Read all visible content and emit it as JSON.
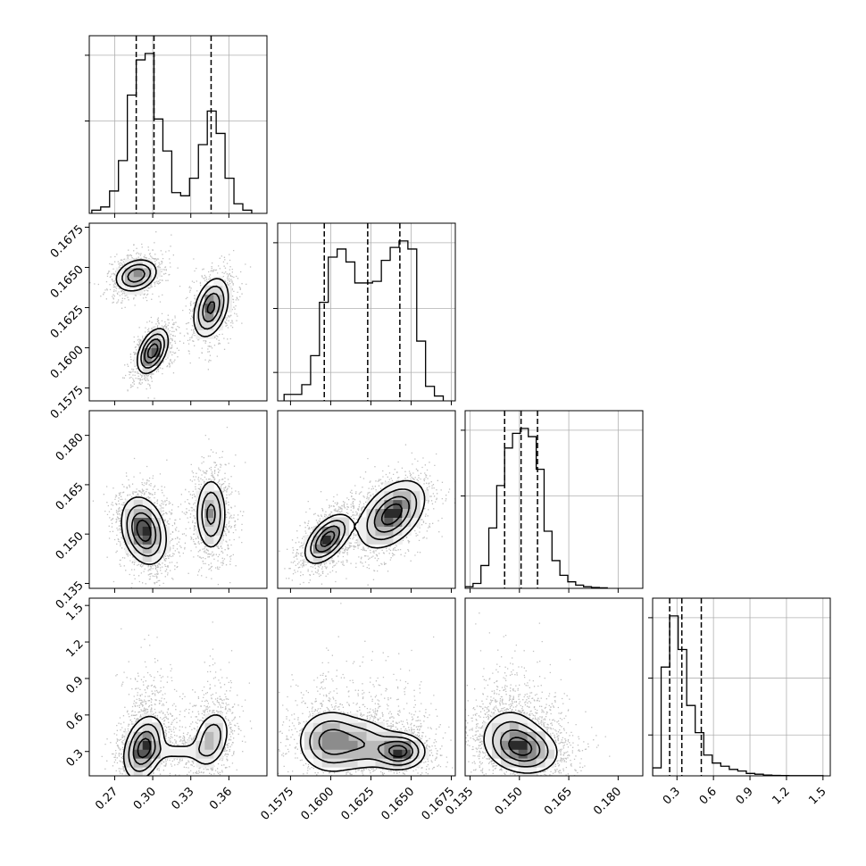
{
  "chart_data": {
    "type": "corner",
    "parameters": [
      {
        "xlim": [
          0.25,
          0.39
        ],
        "ylim": [
          0.1335,
          0.1875
        ],
        "ticks": [
          0.27,
          0.3,
          0.33,
          0.36
        ],
        "tick_labels": [
          "0.27",
          "0.30",
          "0.33",
          "0.36"
        ],
        "quantiles": [
          0.287,
          0.301,
          0.346
        ],
        "hist_bins": [
          0.252,
          0.259,
          0.266,
          0.273,
          0.28,
          0.287,
          0.294,
          0.301,
          0.308,
          0.315,
          0.322,
          0.329,
          0.336,
          0.343,
          0.35,
          0.357,
          0.364,
          0.371,
          0.378
        ],
        "hist_counts": [
          0.02,
          0.04,
          0.14,
          0.33,
          0.74,
          0.96,
          1.0,
          0.59,
          0.39,
          0.13,
          0.11,
          0.22,
          0.43,
          0.64,
          0.5,
          0.22,
          0.06,
          0.02
        ],
        "hist_yticks": [
          0.52,
          0.89
        ]
      },
      {
        "xlim": [
          0.1567,
          0.16775
        ],
        "ylim": [
          0.1567,
          0.16775
        ],
        "ticks": [
          0.1575,
          0.16,
          0.1625,
          0.165,
          0.1675
        ],
        "tick_labels": [
          "0.1575",
          "0.1600",
          "0.1625",
          "0.1650",
          "0.1675"
        ],
        "quantiles": [
          0.1596,
          0.1623,
          0.1643
        ],
        "hist_bins": [
          0.1571,
          0.15765,
          0.1582,
          0.15875,
          0.1593,
          0.15985,
          0.1604,
          0.16095,
          0.1615,
          0.16205,
          0.1626,
          0.16315,
          0.1637,
          0.16425,
          0.1648,
          0.16535,
          0.1659,
          0.16645,
          0.167
        ],
        "hist_counts": [
          0.04,
          0.04,
          0.1,
          0.28,
          0.61,
          0.89,
          0.94,
          0.86,
          0.73,
          0.73,
          0.74,
          0.87,
          0.95,
          0.99,
          0.94,
          0.37,
          0.09,
          0.03
        ],
        "hist_yticks": [
          0.16,
          0.52,
          0.89
        ]
      },
      {
        "xlim": [
          0.1335,
          0.1875
        ],
        "ylim": [
          0.1335,
          0.1875
        ],
        "ticks": [
          0.135,
          0.15,
          0.165,
          0.18
        ],
        "tick_labels": [
          "0.135",
          "0.150",
          "0.165",
          "0.180"
        ],
        "quantiles": [
          0.1455,
          0.1505,
          0.1555
        ],
        "hist_bins": [
          0.1335,
          0.1359,
          0.1383,
          0.1407,
          0.1431,
          0.1455,
          0.1479,
          0.1503,
          0.1527,
          0.1551,
          0.1575,
          0.1599,
          0.1623,
          0.1647,
          0.1671,
          0.1695,
          0.1719,
          0.1743,
          0.1767
        ],
        "hist_counts": [
          0.01,
          0.03,
          0.14,
          0.37,
          0.63,
          0.86,
          0.95,
          0.98,
          0.93,
          0.73,
          0.35,
          0.17,
          0.08,
          0.04,
          0.02,
          0.01,
          0.005,
          0.003
        ],
        "hist_yticks": [
          0.52,
          0.89
        ]
      },
      {
        "xlim": [
          0.1,
          1.56
        ],
        "ylim": [
          0.1,
          1.56
        ],
        "ticks": [
          0.3,
          0.6,
          0.9,
          1.2,
          1.5
        ],
        "tick_labels": [
          "0.3",
          "0.6",
          "0.9",
          "1.2",
          "1.5"
        ],
        "quantiles": [
          0.24,
          0.34,
          0.5
        ],
        "hist_bins": [
          0.1,
          0.17,
          0.24,
          0.31,
          0.38,
          0.45,
          0.52,
          0.59,
          0.66,
          0.73,
          0.8,
          0.87,
          0.94,
          1.01,
          1.08,
          1.15,
          1.22,
          1.29,
          1.36,
          1.43,
          1.5
        ],
        "hist_counts": [
          0.05,
          0.68,
          1.0,
          0.79,
          0.44,
          0.27,
          0.13,
          0.08,
          0.06,
          0.04,
          0.03,
          0.015,
          0.01,
          0.005,
          0.003,
          0.002,
          0.001,
          0.001,
          0.001,
          0.001
        ],
        "hist_yticks": [
          0.23,
          0.55,
          0.89
        ]
      }
    ],
    "contour_panels": [
      {
        "x_param": 0,
        "y_param": 1,
        "clusters": [
          {
            "cx": 0.287,
            "cy": 0.1645,
            "sx": 0.009,
            "sy": 0.00055,
            "rho": 0.25,
            "w": 0.8
          },
          {
            "cx": 0.3,
            "cy": 0.1598,
            "sx": 0.0065,
            "sy": 0.00075,
            "rho": 0.45,
            "w": 1.0
          },
          {
            "cx": 0.346,
            "cy": 0.1625,
            "sx": 0.0075,
            "sy": 0.001,
            "rho": 0.35,
            "w": 0.9
          }
        ]
      },
      {
        "x_param": 0,
        "y_param": 2,
        "clusters": [
          {
            "cx": 0.293,
            "cy": 0.151,
            "sx": 0.0095,
            "sy": 0.0055,
            "rho": -0.25,
            "w": 1.0
          },
          {
            "cx": 0.346,
            "cy": 0.156,
            "sx": 0.0065,
            "sy": 0.006,
            "rho": 0.0,
            "w": 0.7
          }
        ]
      },
      {
        "x_param": 1,
        "y_param": 2,
        "clusters": [
          {
            "cx": 0.1598,
            "cy": 0.1485,
            "sx": 0.00075,
            "sy": 0.004,
            "rho": 0.55,
            "w": 1.0
          },
          {
            "cx": 0.1638,
            "cy": 0.156,
            "sx": 0.0011,
            "sy": 0.0055,
            "rho": 0.45,
            "w": 1.0
          }
        ]
      },
      {
        "x_param": 0,
        "y_param": 3,
        "clusters": [
          {
            "cx": 0.293,
            "cy": 0.33,
            "sx": 0.0085,
            "sy": 0.14,
            "rho": 0.3,
            "w": 1.0
          },
          {
            "cx": 0.346,
            "cy": 0.4,
            "sx": 0.008,
            "sy": 0.13,
            "rho": 0.3,
            "w": 0.6
          },
          {
            "cx": 0.32,
            "cy": 0.3,
            "sx": 0.013,
            "sy": 0.05,
            "rho": 0.0,
            "w": 0.25
          }
        ]
      },
      {
        "x_param": 1,
        "y_param": 3,
        "clusters": [
          {
            "cx": 0.16,
            "cy": 0.38,
            "sx": 0.0011,
            "sy": 0.14,
            "rho": 0.0,
            "w": 0.8
          },
          {
            "cx": 0.1643,
            "cy": 0.3,
            "sx": 0.00085,
            "sy": 0.08,
            "rho": 0.0,
            "w": 1.0
          },
          {
            "cx": 0.1622,
            "cy": 0.36,
            "sx": 0.001,
            "sy": 0.12,
            "rho": 0.0,
            "w": 0.5
          }
        ]
      },
      {
        "x_param": 2,
        "y_param": 3,
        "clusters": [
          {
            "cx": 0.151,
            "cy": 0.32,
            "sx": 0.0058,
            "sy": 0.11,
            "rho": -0.15,
            "w": 1.0
          },
          {
            "cx": 0.147,
            "cy": 0.48,
            "sx": 0.005,
            "sy": 0.12,
            "rho": 0.0,
            "w": 0.35
          }
        ]
      }
    ],
    "contour_levels": [
      0.18,
      0.38,
      0.62,
      0.85
    ],
    "grid": true
  }
}
